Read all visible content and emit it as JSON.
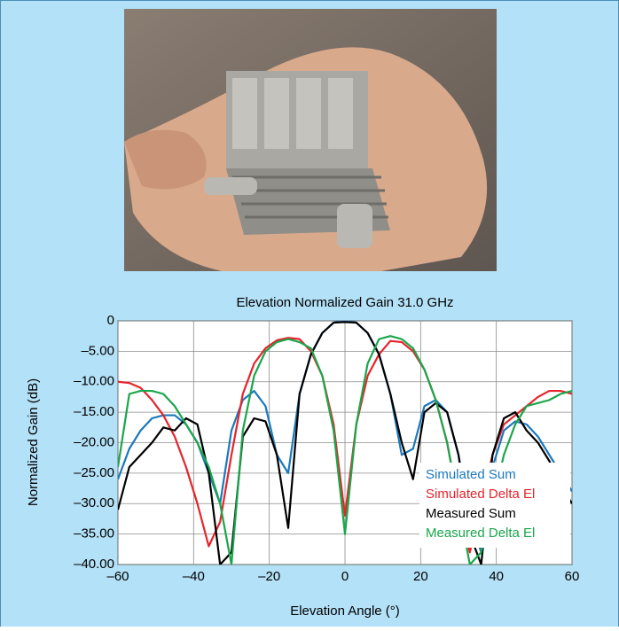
{
  "chart_data": {
    "type": "line",
    "title": "Elevation Normalized Gain 31.0 GHz",
    "x_label": "Elevation Angle (°)",
    "y_label": "Normalized Gain (dB)",
    "x": [
      -60,
      -57,
      -54,
      -51,
      -48,
      -45,
      -42,
      -39,
      -36,
      -33,
      -30,
      -27,
      -24,
      -21,
      -18,
      -15,
      -12,
      -9,
      -6,
      -3,
      0,
      3,
      6,
      9,
      12,
      15,
      18,
      21,
      24,
      27,
      30,
      33,
      36,
      39,
      42,
      45,
      48,
      51,
      54,
      57,
      60
    ],
    "series": [
      {
        "name": "Simulated Sum",
        "color": "#1b78bd",
        "values": [
          -26,
          -21,
          -18,
          -16,
          -15.5,
          -15.5,
          -17,
          -20,
          -25,
          -30,
          -18,
          -13,
          -11.5,
          -14,
          -22,
          -25,
          -12,
          -5.5,
          -2,
          -0.3,
          0,
          -0.3,
          -2,
          -5.5,
          -12,
          -22,
          -21,
          -14,
          -13,
          -15,
          -22,
          -32,
          -38,
          -24,
          -18,
          -16.5,
          -17,
          -19,
          -22,
          -25,
          -28
        ]
      },
      {
        "name": "Simulated Delta El",
        "color": "#e5242b",
        "values": [
          -10,
          -10.2,
          -11,
          -13,
          -15.5,
          -19,
          -24,
          -30,
          -37,
          -33,
          -22,
          -12,
          -7,
          -4.5,
          -3.2,
          -2.8,
          -3,
          -5,
          -9,
          -17,
          -32,
          -17,
          -9,
          -5.5,
          -3.3,
          -3.5,
          -5,
          -8,
          -13,
          -20,
          -30,
          -38,
          -30,
          -22,
          -17,
          -15.5,
          -14,
          -12.5,
          -11.5,
          -11.5,
          -12
        ]
      },
      {
        "name": "Measured Sum",
        "color": "#000000",
        "values": [
          -31,
          -24,
          -22,
          -20,
          -17.5,
          -18,
          -16,
          -17,
          -25,
          -40,
          -38,
          -19,
          -16,
          -16.5,
          -22,
          -34,
          -12,
          -5.5,
          -2,
          -0.3,
          -0.2,
          -0.3,
          -2,
          -5.5,
          -12,
          -20,
          -26,
          -15,
          -13.5,
          -15,
          -22,
          -35,
          -40,
          -22,
          -16,
          -15,
          -18,
          -20,
          -23,
          -27,
          -30
        ]
      },
      {
        "name": "Measured Delta El",
        "color": "#1aa64b",
        "values": [
          -24,
          -12,
          -11.5,
          -11.5,
          -12,
          -14,
          -17,
          -20,
          -24,
          -30,
          -40,
          -18,
          -9,
          -5,
          -3.5,
          -3,
          -3.5,
          -4.5,
          -9,
          -18,
          -35,
          -17,
          -7,
          -3,
          -2.5,
          -3,
          -4.5,
          -8,
          -13,
          -20,
          -30,
          -40,
          -38,
          -30,
          -22,
          -17,
          -14,
          -13.5,
          -13,
          -12,
          -11.5
        ]
      }
    ],
    "xlim": [
      -60,
      60
    ],
    "xticks": [
      {
        "value": -60,
        "label": "–60"
      },
      {
        "value": -40,
        "label": "–40"
      },
      {
        "value": -20,
        "label": "–20"
      },
      0,
      20,
      40,
      60
    ],
    "ylim": [
      -40,
      0
    ],
    "yticks": [
      0,
      {
        "value": -5,
        "label": "–5.00"
      },
      {
        "value": -10,
        "label": "–10.00"
      },
      {
        "value": -15,
        "label": "–15.00"
      },
      {
        "value": -20,
        "label": "–20.00"
      },
      {
        "value": -25,
        "label": "–25.00"
      },
      {
        "value": -30,
        "label": "–30.00"
      },
      {
        "value": -35,
        "label": "–35.00"
      },
      {
        "value": -40,
        "label": "–40.00"
      }
    ],
    "grid": true
  }
}
